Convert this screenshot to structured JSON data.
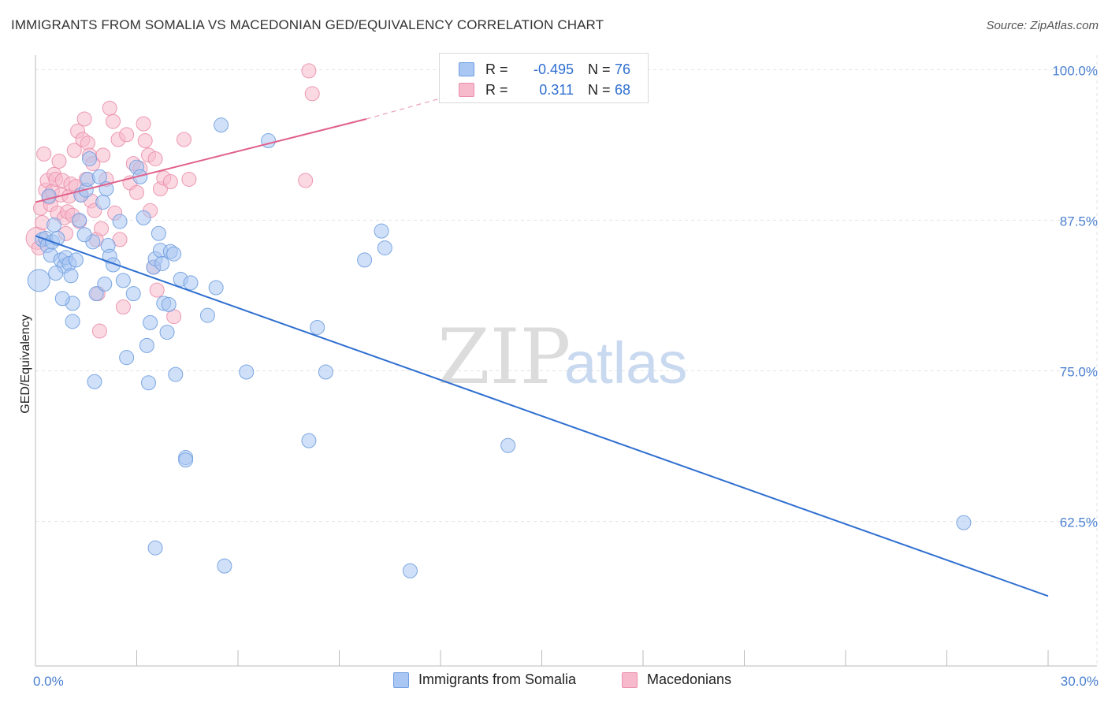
{
  "header": {
    "title": "IMMIGRANTS FROM SOMALIA VS MACEDONIAN GED/EQUIVALENCY CORRELATION CHART",
    "source": "Source: ZipAtlas.com"
  },
  "watermark": {
    "zip": "ZIP",
    "atlas": "atlas"
  },
  "legend_top": {
    "rows": [
      {
        "r_label": "R =",
        "r_value": "-0.495",
        "n_label": "N =",
        "n_value": "76"
      },
      {
        "r_label": "R =",
        "r_value": "0.311",
        "n_label": "N =",
        "n_value": "68"
      }
    ]
  },
  "legend_bottom": {
    "items": [
      {
        "label": "Immigrants from Somalia"
      },
      {
        "label": "Macedonians"
      }
    ]
  },
  "colors": {
    "blue_fill": "#a9c7f2",
    "blue_stroke": "#6f9ee0",
    "blue_line": "#2f6fd0",
    "pink_fill": "#f7b9cc",
    "pink_stroke": "#ea8fab",
    "pink_line": "#e0608a",
    "grid": "#e3e3e3",
    "tick_text": "#4a7fd0"
  },
  "chart_data": {
    "type": "scatter",
    "title": "IMMIGRANTS FROM SOMALIA VS MACEDONIAN GED/EQUIVALENCY CORRELATION CHART",
    "xlabel": "",
    "ylabel": "GED/Equivalency",
    "xlim": [
      0,
      30
    ],
    "ylim": [
      50.5,
      101.2
    ],
    "x_tick_labels": [
      {
        "value": 0,
        "label": "0.0%"
      },
      {
        "value": 30,
        "label": "30.0%"
      }
    ],
    "y_tick_labels": [
      {
        "value": 100,
        "label": "100.0%"
      },
      {
        "value": 87.5,
        "label": "87.5%"
      },
      {
        "value": 75,
        "label": "75.0%"
      },
      {
        "value": 62.5,
        "label": "62.5%"
      }
    ],
    "x_minor_ticks": [
      0,
      3,
      6,
      9,
      12,
      15,
      18,
      21,
      24,
      27,
      30
    ],
    "series": [
      {
        "name": "Immigrants from Somalia",
        "r": -0.495,
        "n": 76,
        "trend": {
          "x": [
            0,
            30
          ],
          "y": [
            86.2,
            56.3
          ]
        },
        "points": [
          [
            0.1,
            82.5,
            2
          ],
          [
            0.2,
            85.9,
            1
          ],
          [
            0.3,
            86.0,
            1
          ],
          [
            0.35,
            85.4,
            1
          ],
          [
            0.45,
            84.6,
            1
          ],
          [
            0.5,
            85.7,
            1
          ],
          [
            0.55,
            87.1,
            1
          ],
          [
            0.65,
            86.0,
            1
          ],
          [
            0.75,
            84.2,
            1
          ],
          [
            0.85,
            83.7,
            1
          ],
          [
            0.9,
            84.4,
            1
          ],
          [
            1.0,
            83.9,
            1
          ],
          [
            1.05,
            82.9,
            1
          ],
          [
            1.1,
            80.6,
            1
          ],
          [
            1.1,
            79.1,
            1
          ],
          [
            1.3,
            87.5,
            1
          ],
          [
            1.35,
            89.6,
            1
          ],
          [
            1.5,
            90.0,
            1
          ],
          [
            1.55,
            90.9,
            1
          ],
          [
            1.6,
            92.6,
            1
          ],
          [
            1.7,
            85.7,
            1
          ],
          [
            1.8,
            81.4,
            1
          ],
          [
            1.75,
            74.1,
            1
          ],
          [
            1.9,
            91.1,
            1
          ],
          [
            2.0,
            89.0,
            1
          ],
          [
            2.1,
            90.1,
            1
          ],
          [
            2.05,
            82.2,
            1
          ],
          [
            2.15,
            85.4,
            1
          ],
          [
            2.2,
            84.5,
            1
          ],
          [
            2.6,
            82.5,
            1
          ],
          [
            2.5,
            87.4,
            1
          ],
          [
            2.7,
            76.1,
            1
          ],
          [
            2.9,
            81.4,
            1
          ],
          [
            3.0,
            91.9,
            1
          ],
          [
            3.1,
            91.1,
            1
          ],
          [
            3.2,
            87.7,
            1
          ],
          [
            3.3,
            77.1,
            1
          ],
          [
            3.4,
            79.0,
            1
          ],
          [
            3.35,
            74.0,
            1
          ],
          [
            3.5,
            83.6,
            1
          ],
          [
            3.55,
            84.3,
            1
          ],
          [
            3.65,
            86.4,
            1
          ],
          [
            3.7,
            85.0,
            1
          ],
          [
            3.75,
            83.9,
            1
          ],
          [
            3.8,
            80.6,
            1
          ],
          [
            3.95,
            80.5,
            1
          ],
          [
            4.0,
            84.9,
            1
          ],
          [
            4.1,
            84.7,
            1
          ],
          [
            4.15,
            74.7,
            1
          ],
          [
            4.3,
            82.6,
            1
          ],
          [
            4.45,
            67.8,
            1
          ],
          [
            4.45,
            67.6,
            1
          ],
          [
            4.6,
            82.3,
            1
          ],
          [
            5.1,
            79.6,
            1
          ],
          [
            5.35,
            81.9,
            1
          ],
          [
            5.5,
            95.4,
            1
          ],
          [
            3.55,
            60.3,
            1
          ],
          [
            5.6,
            58.8,
            1
          ],
          [
            6.25,
            74.9,
            1
          ],
          [
            6.9,
            94.1,
            1
          ],
          [
            8.1,
            69.2,
            1
          ],
          [
            8.35,
            78.6,
            1
          ],
          [
            8.6,
            74.9,
            1
          ],
          [
            9.75,
            84.2,
            1
          ],
          [
            10.25,
            86.6,
            1
          ],
          [
            10.35,
            85.2,
            1
          ],
          [
            11.1,
            58.4,
            1
          ],
          [
            14.0,
            68.8,
            1
          ],
          [
            27.5,
            62.4,
            1
          ],
          [
            1.2,
            84.2,
            1
          ],
          [
            0.4,
            89.5,
            1
          ],
          [
            2.3,
            83.8,
            1
          ],
          [
            0.8,
            81.0,
            1
          ],
          [
            1.45,
            86.3,
            1
          ],
          [
            3.9,
            78.2,
            1
          ],
          [
            0.6,
            83.1,
            1
          ]
        ]
      },
      {
        "name": "Macedonians",
        "r": 0.311,
        "n": 68,
        "trend": {
          "x": [
            0,
            9.8
          ],
          "y": [
            89.0,
            95.9
          ],
          "dashed_to": {
            "x": 12.5,
            "y": 98.0
          }
        },
        "points": [
          [
            0.05,
            86.0,
            2
          ],
          [
            0.1,
            85.2,
            1
          ],
          [
            0.15,
            88.5,
            1
          ],
          [
            0.2,
            87.3,
            1
          ],
          [
            0.3,
            90.0,
            1
          ],
          [
            0.35,
            90.8,
            1
          ],
          [
            0.4,
            89.4,
            1
          ],
          [
            0.45,
            88.8,
            1
          ],
          [
            0.5,
            89.9,
            1
          ],
          [
            0.55,
            91.3,
            1
          ],
          [
            0.6,
            90.9,
            1
          ],
          [
            0.65,
            88.1,
            1
          ],
          [
            0.7,
            92.4,
            1
          ],
          [
            0.75,
            89.6,
            1
          ],
          [
            0.8,
            90.8,
            1
          ],
          [
            0.85,
            87.7,
            1
          ],
          [
            0.9,
            86.4,
            1
          ],
          [
            0.95,
            88.2,
            1
          ],
          [
            1.0,
            89.5,
            1
          ],
          [
            1.05,
            90.5,
            1
          ],
          [
            1.1,
            87.9,
            1
          ],
          [
            1.15,
            93.3,
            1
          ],
          [
            1.2,
            90.3,
            1
          ],
          [
            1.25,
            94.9,
            1
          ],
          [
            1.3,
            87.4,
            1
          ],
          [
            1.35,
            89.6,
            1
          ],
          [
            1.4,
            94.2,
            1
          ],
          [
            1.45,
            95.9,
            1
          ],
          [
            1.5,
            90.9,
            1
          ],
          [
            1.55,
            93.9,
            1
          ],
          [
            1.6,
            92.9,
            1
          ],
          [
            1.65,
            89.1,
            1
          ],
          [
            1.7,
            92.2,
            1
          ],
          [
            1.75,
            88.3,
            1
          ],
          [
            1.8,
            85.9,
            1
          ],
          [
            1.85,
            81.4,
            1
          ],
          [
            1.9,
            78.3,
            1
          ],
          [
            2.0,
            92.9,
            1
          ],
          [
            2.1,
            90.9,
            1
          ],
          [
            2.2,
            96.8,
            1
          ],
          [
            2.3,
            95.7,
            1
          ],
          [
            2.35,
            88.1,
            1
          ],
          [
            2.45,
            94.2,
            1
          ],
          [
            2.5,
            85.9,
            1
          ],
          [
            2.6,
            80.3,
            1
          ],
          [
            2.7,
            94.6,
            1
          ],
          [
            2.8,
            90.6,
            1
          ],
          [
            2.9,
            92.2,
            1
          ],
          [
            3.0,
            89.8,
            1
          ],
          [
            3.1,
            91.8,
            1
          ],
          [
            3.2,
            95.5,
            1
          ],
          [
            3.25,
            94.1,
            1
          ],
          [
            3.35,
            92.9,
            1
          ],
          [
            3.4,
            88.3,
            1
          ],
          [
            3.5,
            83.6,
            1
          ],
          [
            3.6,
            81.7,
            1
          ],
          [
            3.7,
            90.1,
            1
          ],
          [
            3.8,
            91.0,
            1
          ],
          [
            4.0,
            90.7,
            1
          ],
          [
            4.1,
            79.5,
            1
          ],
          [
            4.4,
            94.2,
            1
          ],
          [
            4.55,
            90.9,
            1
          ],
          [
            8.1,
            99.9,
            1
          ],
          [
            8.2,
            98.0,
            1
          ],
          [
            8.0,
            90.8,
            1
          ],
          [
            0.25,
            93.0,
            1
          ],
          [
            1.95,
            86.8,
            1
          ],
          [
            3.55,
            92.6,
            1
          ]
        ]
      }
    ]
  }
}
